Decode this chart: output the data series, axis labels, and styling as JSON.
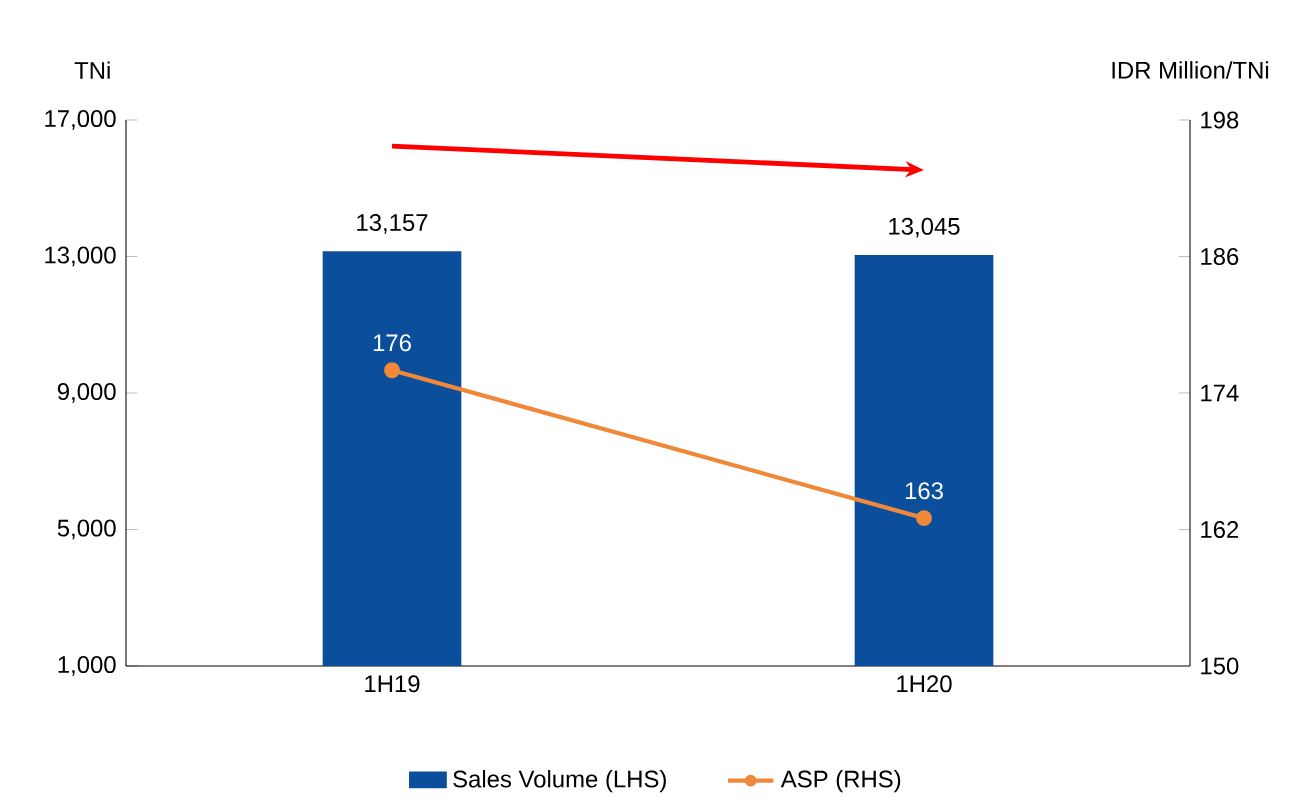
{
  "chart_data": {
    "type": "bar",
    "categories": [
      "1H19",
      "1H20"
    ],
    "series": [
      {
        "name": "Sales Volume (LHS)",
        "color": "#0b4f9c",
        "values": [
          13157,
          13045
        ],
        "value_labels": [
          "13,157",
          "13,045"
        ]
      },
      {
        "name": "ASP (RHS)",
        "type": "line",
        "axis": "y2",
        "color": "#f0883a",
        "marker": "circle",
        "values": [
          176,
          163
        ],
        "value_labels": [
          "176",
          "163"
        ]
      }
    ],
    "ylabel": "TNi",
    "y2label": "IDR Million/TNi",
    "ylim": [
      1000,
      17000
    ],
    "yticks": [
      {
        "value": 1000,
        "label": "1,000"
      },
      {
        "value": 5000,
        "label": "5,000"
      },
      {
        "value": 9000,
        "label": "9,000"
      },
      {
        "value": 13000,
        "label": "13,000"
      },
      {
        "value": 17000,
        "label": "17,000"
      }
    ],
    "y2lim": [
      150,
      198
    ],
    "y2ticks": [
      150,
      162,
      174,
      186,
      198
    ],
    "legend": "bottom",
    "grid": false
  }
}
